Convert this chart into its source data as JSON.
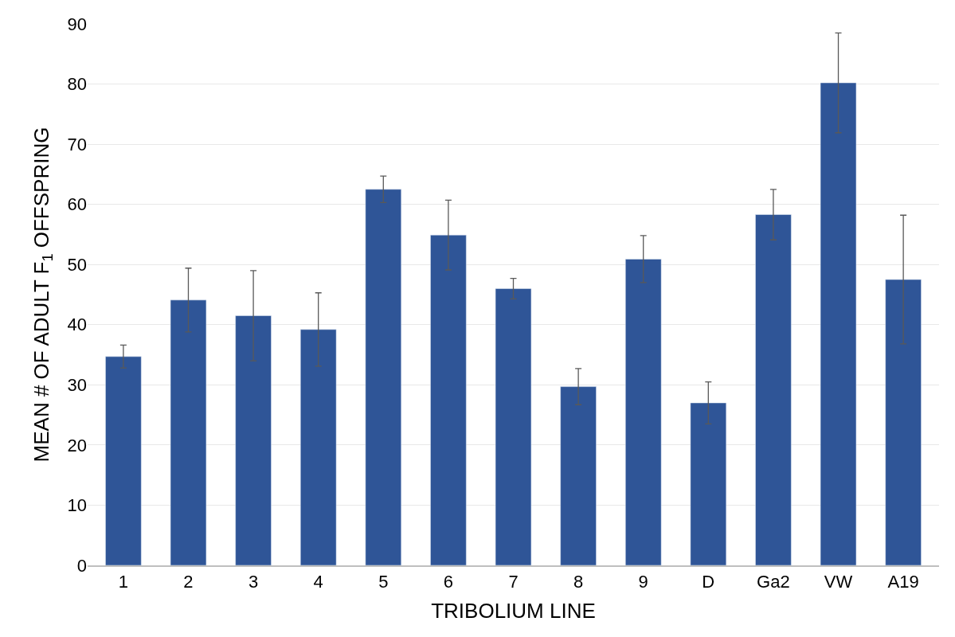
{
  "chart_data": {
    "type": "bar",
    "xlabel": "TRIBOLIUM LINE",
    "ylabel": "MEAN # OF ADULT F$_{1}$ OFFSPRING",
    "categories": [
      "1",
      "2",
      "3",
      "4",
      "5",
      "6",
      "7",
      "8",
      "9",
      "D",
      "Ga2",
      "VW",
      "A19"
    ],
    "values": [
      34.7,
      44.1,
      41.5,
      39.2,
      62.5,
      54.9,
      46.0,
      29.7,
      50.9,
      27.0,
      58.3,
      80.2,
      47.5
    ],
    "errors": [
      1.9,
      5.3,
      7.5,
      6.1,
      2.2,
      5.8,
      1.7,
      3.0,
      3.9,
      3.5,
      4.2,
      8.3,
      10.7
    ],
    "color": "#2f5597",
    "ylim": [
      0,
      90
    ],
    "yticks": [
      0,
      10,
      20,
      30,
      40,
      50,
      60,
      70,
      80,
      90
    ],
    "grid": "y"
  }
}
